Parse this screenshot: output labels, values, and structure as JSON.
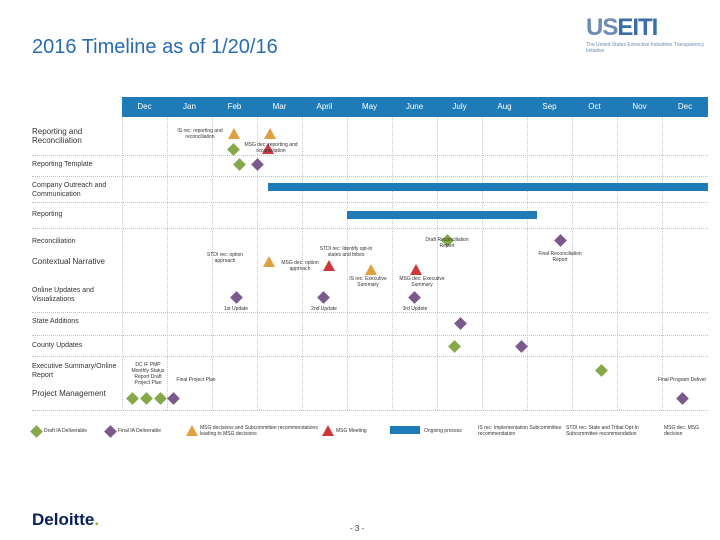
{
  "title": "2016 Timeline as of 1/20/16",
  "logo": {
    "word_us": "US",
    "word_eiti": "EITI",
    "subtitle": "The United States Extractive Industries Transparency Initiative"
  },
  "colors": {
    "blue": "#1f7bb8",
    "green": "#86a84a",
    "purple": "#7a5a8c",
    "orange": "#e0a040",
    "red": "#d0363d"
  },
  "months": [
    "Dec",
    "Jan",
    "Feb",
    "Mar",
    "April",
    "May",
    "June",
    "July",
    "Aug",
    "Sep",
    "Oct",
    "Nov",
    "Dec"
  ],
  "rows": [
    "Reporting and Reconciliation",
    "Reporting Template",
    "Company Outreach and Communication",
    "Reporting",
    "Reconciliation",
    "Contextual Narrative",
    "Online Updates and Visualizations",
    "State Additions",
    "County Updates",
    "Executive Summary/Online Report",
    "Project Management"
  ],
  "annotations": {
    "is_rec_reporting": "IS rec: reporting and reconciliation",
    "msg_dec_reporting": "MSG dec: reporting and reconciliation",
    "stdi_rec_opt": "STDI rec: option approach",
    "msg_dec_opt": "MSG dec: option approach",
    "stdi_rec_identify": "STDI rec: Identify opt-in states and tribes",
    "draft_recon": "Draft Reconciliation Report",
    "final_recon": "Final Reconciliation Report",
    "is_rec_exec": "IS rec: Executive Summary",
    "msg_dec_exec": "MSG dec: Executive Summary",
    "update1": "1st Update",
    "update2": "2nd Update",
    "update3": "3rd Update",
    "dc_pmp": "DC IF PMP Monthly Status Report Draft Project Plan",
    "final_project_plan": "Final Project Plan",
    "final_program_deliver": "Final Program Deliver"
  },
  "legend": {
    "draft_ia": "Draft IA Deliverable",
    "final_ia": "Final IA Deliverable",
    "msg_discuss": "MSG decisions and Subcommittee recommendations leading to MSG decisions",
    "msg_meeting": "MSG Meeting",
    "ongoing": "Ongoing process",
    "is_rec_impl": "IS rec: Implementation Subcommittee recommendation",
    "stdi_rec": "STDI rec: State and Tribal Opt-In Subcommittee recommendation",
    "msg_dec_msg": "MSG dec: MSG decision"
  },
  "footer": {
    "brand": "Deloitte",
    "brand_dot": ".",
    "page": "- 3 -"
  }
}
